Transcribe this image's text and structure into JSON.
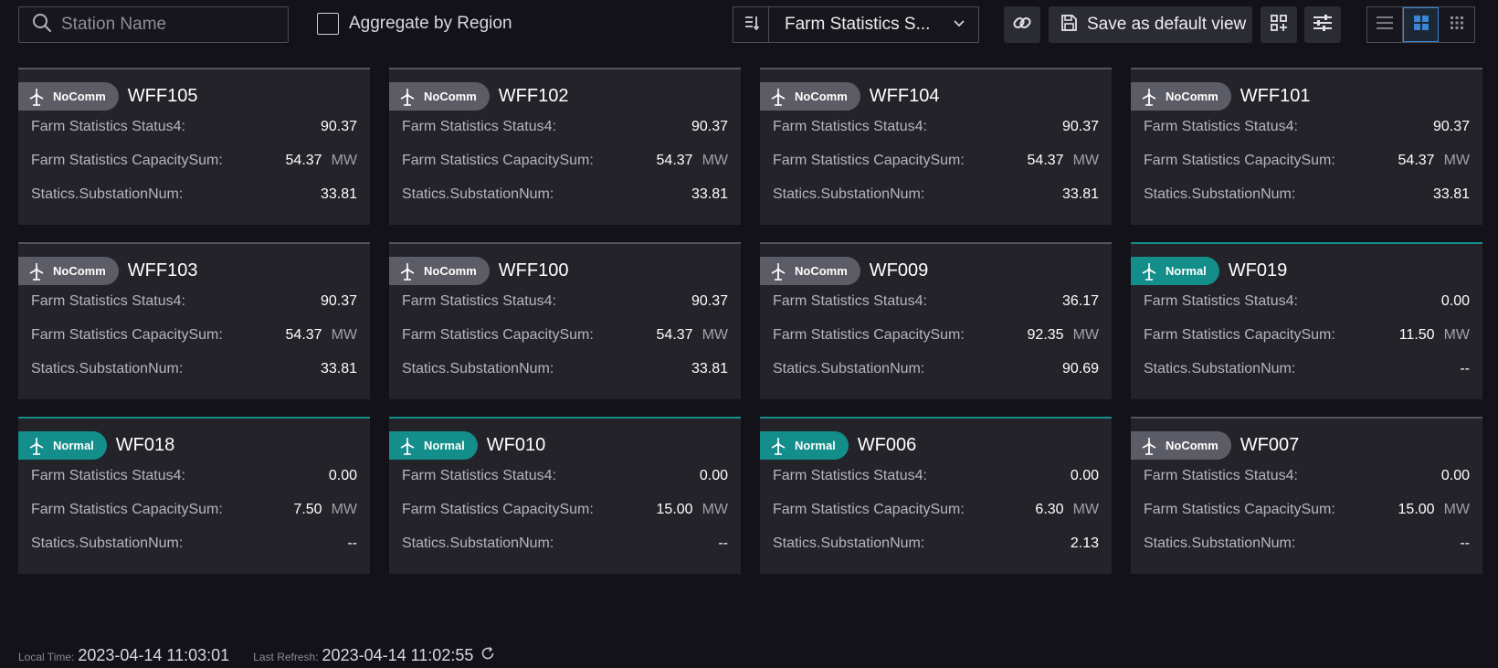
{
  "toolbar": {
    "search_placeholder": "Station Name",
    "aggregate_label": "Aggregate by Region",
    "selected_view": "Farm Statistics S...",
    "save_label": "Save as default view"
  },
  "cards": [
    {
      "status": "NoComm",
      "name": "WFF105",
      "rows": [
        {
          "label": "Farm Statistics Status4:",
          "value": "90.37",
          "unit": ""
        },
        {
          "label": "Farm Statistics CapacitySum:",
          "value": "54.37",
          "unit": "MW"
        },
        {
          "label": "Statics.SubstationNum:",
          "value": "33.81",
          "unit": ""
        }
      ]
    },
    {
      "status": "NoComm",
      "name": "WFF102",
      "rows": [
        {
          "label": "Farm Statistics Status4:",
          "value": "90.37",
          "unit": ""
        },
        {
          "label": "Farm Statistics CapacitySum:",
          "value": "54.37",
          "unit": "MW"
        },
        {
          "label": "Statics.SubstationNum:",
          "value": "33.81",
          "unit": ""
        }
      ]
    },
    {
      "status": "NoComm",
      "name": "WFF104",
      "rows": [
        {
          "label": "Farm Statistics Status4:",
          "value": "90.37",
          "unit": ""
        },
        {
          "label": "Farm Statistics CapacitySum:",
          "value": "54.37",
          "unit": "MW"
        },
        {
          "label": "Statics.SubstationNum:",
          "value": "33.81",
          "unit": ""
        }
      ]
    },
    {
      "status": "NoComm",
      "name": "WFF101",
      "rows": [
        {
          "label": "Farm Statistics Status4:",
          "value": "90.37",
          "unit": ""
        },
        {
          "label": "Farm Statistics CapacitySum:",
          "value": "54.37",
          "unit": "MW"
        },
        {
          "label": "Statics.SubstationNum:",
          "value": "33.81",
          "unit": ""
        }
      ]
    },
    {
      "status": "NoComm",
      "name": "WFF103",
      "rows": [
        {
          "label": "Farm Statistics Status4:",
          "value": "90.37",
          "unit": ""
        },
        {
          "label": "Farm Statistics CapacitySum:",
          "value": "54.37",
          "unit": "MW"
        },
        {
          "label": "Statics.SubstationNum:",
          "value": "33.81",
          "unit": ""
        }
      ]
    },
    {
      "status": "NoComm",
      "name": "WFF100",
      "rows": [
        {
          "label": "Farm Statistics Status4:",
          "value": "90.37",
          "unit": ""
        },
        {
          "label": "Farm Statistics CapacitySum:",
          "value": "54.37",
          "unit": "MW"
        },
        {
          "label": "Statics.SubstationNum:",
          "value": "33.81",
          "unit": ""
        }
      ]
    },
    {
      "status": "NoComm",
      "name": "WF009",
      "rows": [
        {
          "label": "Farm Statistics Status4:",
          "value": "36.17",
          "unit": ""
        },
        {
          "label": "Farm Statistics CapacitySum:",
          "value": "92.35",
          "unit": "MW"
        },
        {
          "label": "Statics.SubstationNum:",
          "value": "90.69",
          "unit": ""
        }
      ]
    },
    {
      "status": "Normal",
      "name": "WF019",
      "rows": [
        {
          "label": "Farm Statistics Status4:",
          "value": "0.00",
          "unit": ""
        },
        {
          "label": "Farm Statistics CapacitySum:",
          "value": "11.50",
          "unit": "MW"
        },
        {
          "label": "Statics.SubstationNum:",
          "value": "--",
          "unit": ""
        }
      ]
    },
    {
      "status": "Normal",
      "name": "WF018",
      "rows": [
        {
          "label": "Farm Statistics Status4:",
          "value": "0.00",
          "unit": ""
        },
        {
          "label": "Farm Statistics CapacitySum:",
          "value": "7.50",
          "unit": "MW"
        },
        {
          "label": "Statics.SubstationNum:",
          "value": "--",
          "unit": ""
        }
      ]
    },
    {
      "status": "Normal",
      "name": "WF010",
      "rows": [
        {
          "label": "Farm Statistics Status4:",
          "value": "0.00",
          "unit": ""
        },
        {
          "label": "Farm Statistics CapacitySum:",
          "value": "15.00",
          "unit": "MW"
        },
        {
          "label": "Statics.SubstationNum:",
          "value": "--",
          "unit": ""
        }
      ]
    },
    {
      "status": "Normal",
      "name": "WF006",
      "rows": [
        {
          "label": "Farm Statistics Status4:",
          "value": "0.00",
          "unit": ""
        },
        {
          "label": "Farm Statistics CapacitySum:",
          "value": "6.30",
          "unit": "MW"
        },
        {
          "label": "Statics.SubstationNum:",
          "value": "2.13",
          "unit": ""
        }
      ]
    },
    {
      "status": "NoComm",
      "name": "WF007",
      "rows": [
        {
          "label": "Farm Statistics Status4:",
          "value": "0.00",
          "unit": ""
        },
        {
          "label": "Farm Statistics CapacitySum:",
          "value": "15.00",
          "unit": "MW"
        },
        {
          "label": "Statics.SubstationNum:",
          "value": "--",
          "unit": ""
        }
      ]
    }
  ],
  "footer": {
    "local_time_label": "Local Time:",
    "local_time": "2023-04-14 11:03:01",
    "last_refresh_label": "Last Refresh:",
    "last_refresh": "2023-04-14 11:02:55"
  },
  "colors": {
    "background": "#121218",
    "card": "#232329",
    "normal": "#138e8a",
    "nocomm": "#5c5c66",
    "accent": "#3a86d4"
  },
  "icons": {
    "search": "search-icon",
    "sort": "sort-icon",
    "dropdown": "chevron-down-icon",
    "link": "link-icon",
    "save": "save-icon",
    "grid_add": "grid-add-icon",
    "settings": "sliders-icon",
    "views": [
      "list-view-icon",
      "card-view-icon",
      "dense-grid-icon"
    ],
    "station": "wind-turbine-icon",
    "refresh": "refresh-icon"
  }
}
